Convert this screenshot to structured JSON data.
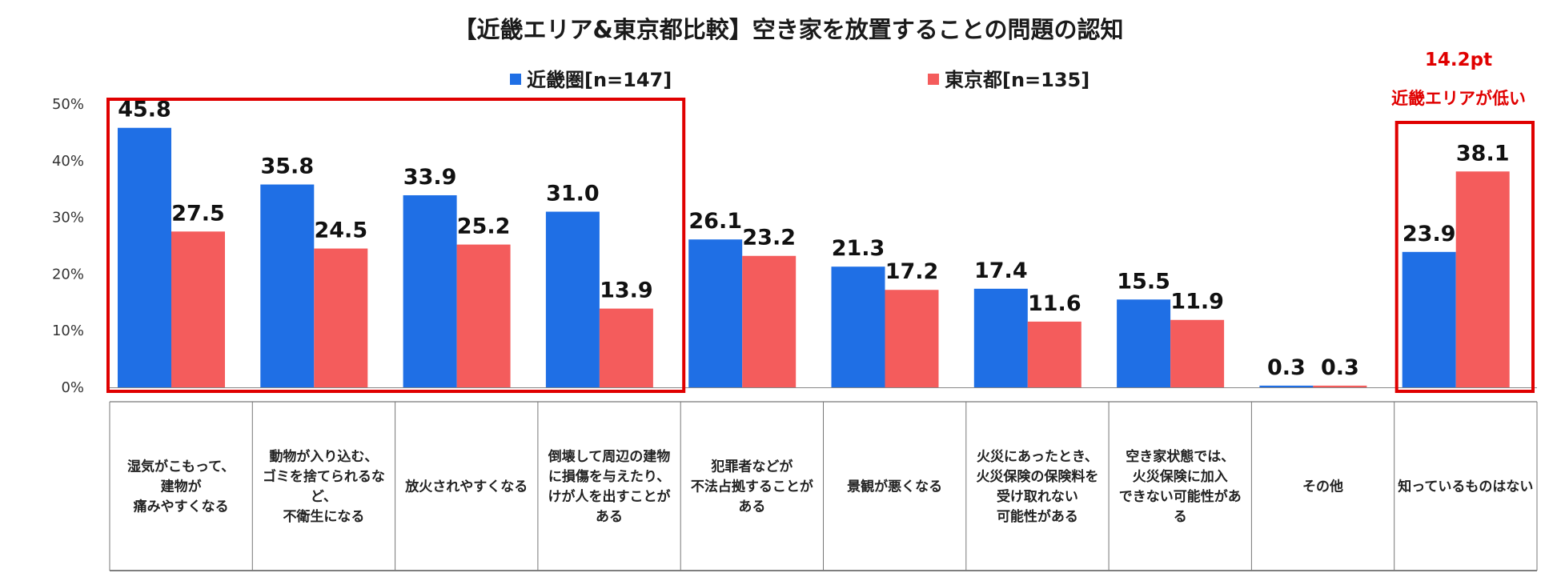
{
  "chart_data": {
    "type": "bar",
    "title": "【近畿エリア&東京都比較】空き家を放置することの問題の認知",
    "ylim": [
      0,
      50
    ],
    "yticks": [
      "0%",
      "10%",
      "20%",
      "30%",
      "40%",
      "50%"
    ],
    "legend_position": "top-center",
    "grid": false,
    "categories": [
      [
        "湿気がこもって、",
        "建物が",
        "痛みやすくなる"
      ],
      [
        "動物が入り込む、",
        "ゴミを捨てられるな",
        "ど、",
        "不衛生になる"
      ],
      [
        "放火されやすくなる"
      ],
      [
        "倒壊して周辺の建物",
        "に損傷を与えたり、",
        "けが人を出すことが",
        "ある"
      ],
      [
        "犯罪者などが",
        "不法占拠することが",
        "ある"
      ],
      [
        "景観が悪くなる"
      ],
      [
        "火災にあったとき、",
        "火災保険の保険料を",
        "受け取れない",
        "可能性がある"
      ],
      [
        "空き家状態では、",
        "火災保険に加入",
        "できない可能性があ",
        "る"
      ],
      [
        "その他"
      ],
      [
        "知っているものはない"
      ]
    ],
    "series": [
      {
        "name": "近畿圏[n=147]",
        "color": "#1f6fe5",
        "values": [
          45.8,
          35.8,
          33.9,
          31.0,
          26.1,
          21.3,
          17.4,
          15.5,
          0.3,
          23.9
        ],
        "labels": [
          "45.8",
          "35.8",
          "33.9",
          "31.0",
          "26.1",
          "21.3",
          "17.4",
          "15.5",
          "0.3",
          "23.9"
        ]
      },
      {
        "name": "東京都[n=135]",
        "color": "#f45c5c",
        "values": [
          27.5,
          24.5,
          25.2,
          13.9,
          23.2,
          17.2,
          11.6,
          11.9,
          0.3,
          38.1
        ],
        "labels": [
          "27.5",
          "24.5",
          "25.2",
          "13.9",
          "23.2",
          "17.2",
          "11.6",
          "11.9",
          "0.3",
          "38.1"
        ]
      }
    ],
    "annotations": {
      "diff": "14.2pt",
      "note": "近畿エリアが低い",
      "highlight_color": "#e00000"
    }
  }
}
